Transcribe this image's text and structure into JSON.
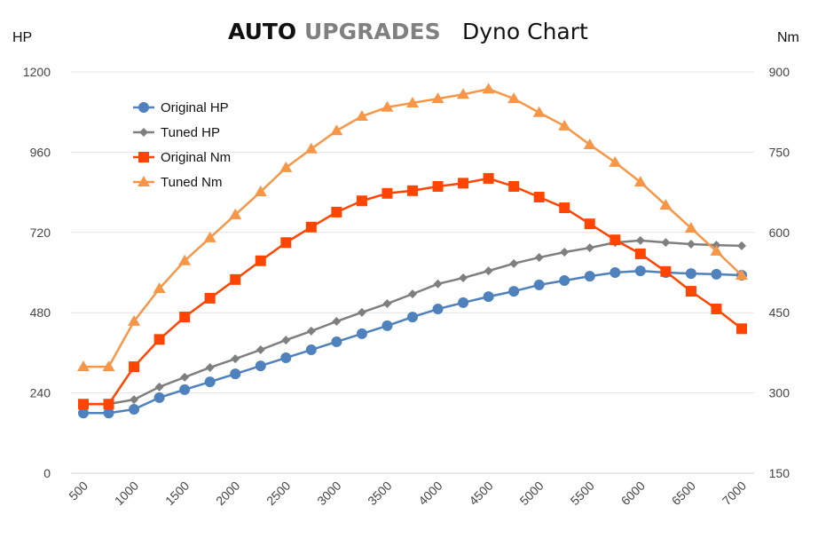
{
  "title": {
    "brand_part1": "AUTO",
    "brand_part2": "UPGRADES",
    "subtitle": "Dyno Chart"
  },
  "chart_data": {
    "type": "line",
    "title": "AUTO UPGRADES Dyno Chart",
    "ylabel_left": "HP",
    "ylabel_right": "Nm",
    "ylim_left": [
      0,
      1200
    ],
    "ylim_right": [
      150,
      900
    ],
    "yticks_left": [
      "0",
      "240",
      "480",
      "720",
      "960",
      "1200"
    ],
    "yticks_right": [
      "150",
      "300",
      "450",
      "600",
      "750",
      "900"
    ],
    "x": [
      500,
      750,
      1000,
      1250,
      1500,
      1750,
      2000,
      2250,
      2500,
      2750,
      3000,
      3250,
      3500,
      3750,
      4000,
      4250,
      4500,
      4750,
      5000,
      5250,
      5500,
      5750,
      6000,
      6250,
      6500,
      6750,
      7000
    ],
    "xtick_labels": [
      "500",
      "1000",
      "1500",
      "2000",
      "2500",
      "3000",
      "3500",
      "4000",
      "4500",
      "5000",
      "5500",
      "6000",
      "6500",
      "7000"
    ],
    "grid": true,
    "legend_position": "top-left",
    "series": [
      {
        "name": "Original HP",
        "axis": "left",
        "color": "#4f81bd",
        "marker": "circle",
        "values": [
          180,
          180,
          191,
          226,
          250,
          273,
          297,
          321,
          345,
          369,
          393,
          417,
          441,
          467,
          491,
          510,
          528,
          544,
          563,
          576,
          589,
          600,
          605,
          600,
          597,
          595,
          592
        ]
      },
      {
        "name": "Tuned HP",
        "axis": "left",
        "color": "#7f7f7f",
        "marker": "diamond",
        "values": [
          207,
          207,
          220,
          258,
          287,
          316,
          342,
          369,
          398,
          425,
          454,
          481,
          507,
          536,
          566,
          584,
          605,
          627,
          645,
          661,
          674,
          690,
          696,
          690,
          685,
          682,
          680
        ]
      },
      {
        "name": "Original Nm",
        "axis": "right",
        "color": "#ff4500",
        "marker": "square",
        "values": [
          279,
          279,
          349,
          400,
          442,
          477,
          512,
          547,
          581,
          610,
          638,
          659,
          673,
          678,
          686,
          692,
          701,
          686,
          666,
          646,
          616,
          586,
          560,
          527,
          490,
          457,
          420
        ]
      },
      {
        "name": "Tuned Nm",
        "axis": "right",
        "color": "#f79646",
        "marker": "triangle",
        "values": [
          349,
          349,
          434,
          495,
          547,
          590,
          633,
          676,
          721,
          756,
          790,
          817,
          834,
          842,
          850,
          858,
          868,
          850,
          824,
          799,
          764,
          731,
          694,
          651,
          608,
          565,
          520
        ]
      }
    ]
  }
}
